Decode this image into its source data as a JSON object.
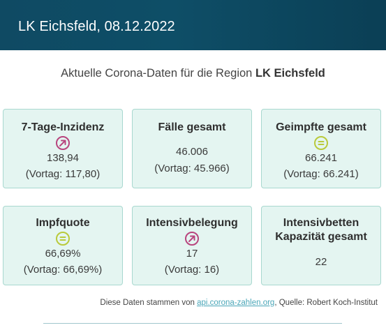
{
  "header": {
    "title": "LK Eichsfeld, 08.12.2022"
  },
  "subtitle": {
    "prefix": "Aktuelle Corona-Daten für die Region ",
    "region": "LK Eichsfeld"
  },
  "cards": [
    {
      "title": "7-Tage-Inzidenz",
      "icon": "trend-up-icon",
      "value": "138,94",
      "previous": "(Vortag: 117,80)"
    },
    {
      "title": "Fälle gesamt",
      "value": "46.006",
      "previous": "(Vortag: 45.966)"
    },
    {
      "title": "Geimpfte gesamt",
      "icon": "equal-icon",
      "value": "66.241",
      "previous": "(Vortag: 66.241)"
    },
    {
      "title": "Impfquote",
      "icon": "equal-icon",
      "value": "66,69%",
      "previous": "(Vortag: 66,69%)"
    },
    {
      "title": "Intensivbelegung",
      "icon": "trend-up-icon",
      "value": "17",
      "previous": "(Vortag: 16)"
    },
    {
      "title_line1": "Intensivbetten",
      "title_line2": "Kapazität gesamt",
      "value": "22"
    }
  ],
  "source": {
    "prefix": "Diese Daten stammen von ",
    "link_text": "api.corona-zahlen.org",
    "suffix": ", Quelle: Robert Koch-Institut"
  },
  "colors": {
    "header_bg": "#0f4a63",
    "card_bg": "#e4f5f1",
    "card_border": "#a8d8cf",
    "trend_up": "#b8457e",
    "equal": "#b9ca3b",
    "link": "#4aa6b8"
  }
}
